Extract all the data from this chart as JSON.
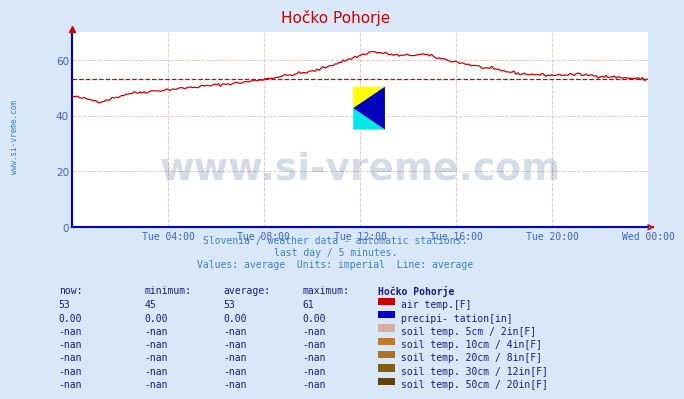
{
  "title": "Hočko Pohorje",
  "background_color": "#d8e8f8",
  "plot_bg_color": "#ffffff",
  "line_color": "#cc0000",
  "avg_value": 53,
  "ylim": [
    0,
    70
  ],
  "yticks": [
    0,
    20,
    40,
    60
  ],
  "tick_color": "#4060c0",
  "title_color": "#cc0000",
  "subtitle_lines": [
    "Slovenia / weather data - automatic stations.",
    "last day / 5 minutes.",
    "Values: average  Units: imperial  Line: average"
  ],
  "subtitle_color": "#4080c0",
  "watermark_text": "www.si-vreme.com",
  "watermark_color": "#1a3a7a",
  "watermark_alpha": 0.18,
  "left_label": "www.si-vreme.com",
  "left_label_color": "#4080c0",
  "xtick_labels": [
    "Tue 04:00",
    "Tue 08:00",
    "Tue 12:00",
    "Tue 16:00",
    "Tue 20:00",
    "Wed 00:00"
  ],
  "xtick_positions": [
    0.167,
    0.333,
    0.5,
    0.667,
    0.833,
    1.0
  ],
  "table_header": [
    "now:",
    "minimum:",
    "average:",
    "maximum:",
    "Hočko Pohorje"
  ],
  "table_rows": [
    {
      "now": "53",
      "min": "45",
      "avg": "53",
      "max": "61",
      "label": "air temp.[F]",
      "color": "#cc0000"
    },
    {
      "now": "0.00",
      "min": "0.00",
      "avg": "0.00",
      "max": "0.00",
      "label": "precipi- tation[in]",
      "color": "#0000cc"
    },
    {
      "now": "-nan",
      "min": "-nan",
      "avg": "-nan",
      "max": "-nan",
      "label": "soil temp. 5cm / 2in[F]",
      "color": "#d8b0a0"
    },
    {
      "now": "-nan",
      "min": "-nan",
      "avg": "-nan",
      "max": "-nan",
      "label": "soil temp. 10cm / 4in[F]",
      "color": "#c07830"
    },
    {
      "now": "-nan",
      "min": "-nan",
      "avg": "-nan",
      "max": "-nan",
      "label": "soil temp. 20cm / 8in[F]",
      "color": "#b07020"
    },
    {
      "now": "-nan",
      "min": "-nan",
      "avg": "-nan",
      "max": "-nan",
      "label": "soil temp. 30cm / 12in[F]",
      "color": "#806010"
    },
    {
      "now": "-nan",
      "min": "-nan",
      "avg": "-nan",
      "max": "-nan",
      "label": "soil temp. 50cm / 20in[F]",
      "color": "#604010"
    }
  ],
  "num_points": 288,
  "grid_color": "#e8c8c8",
  "axis_color": "#0000cc",
  "arrow_color": "#cc0000"
}
